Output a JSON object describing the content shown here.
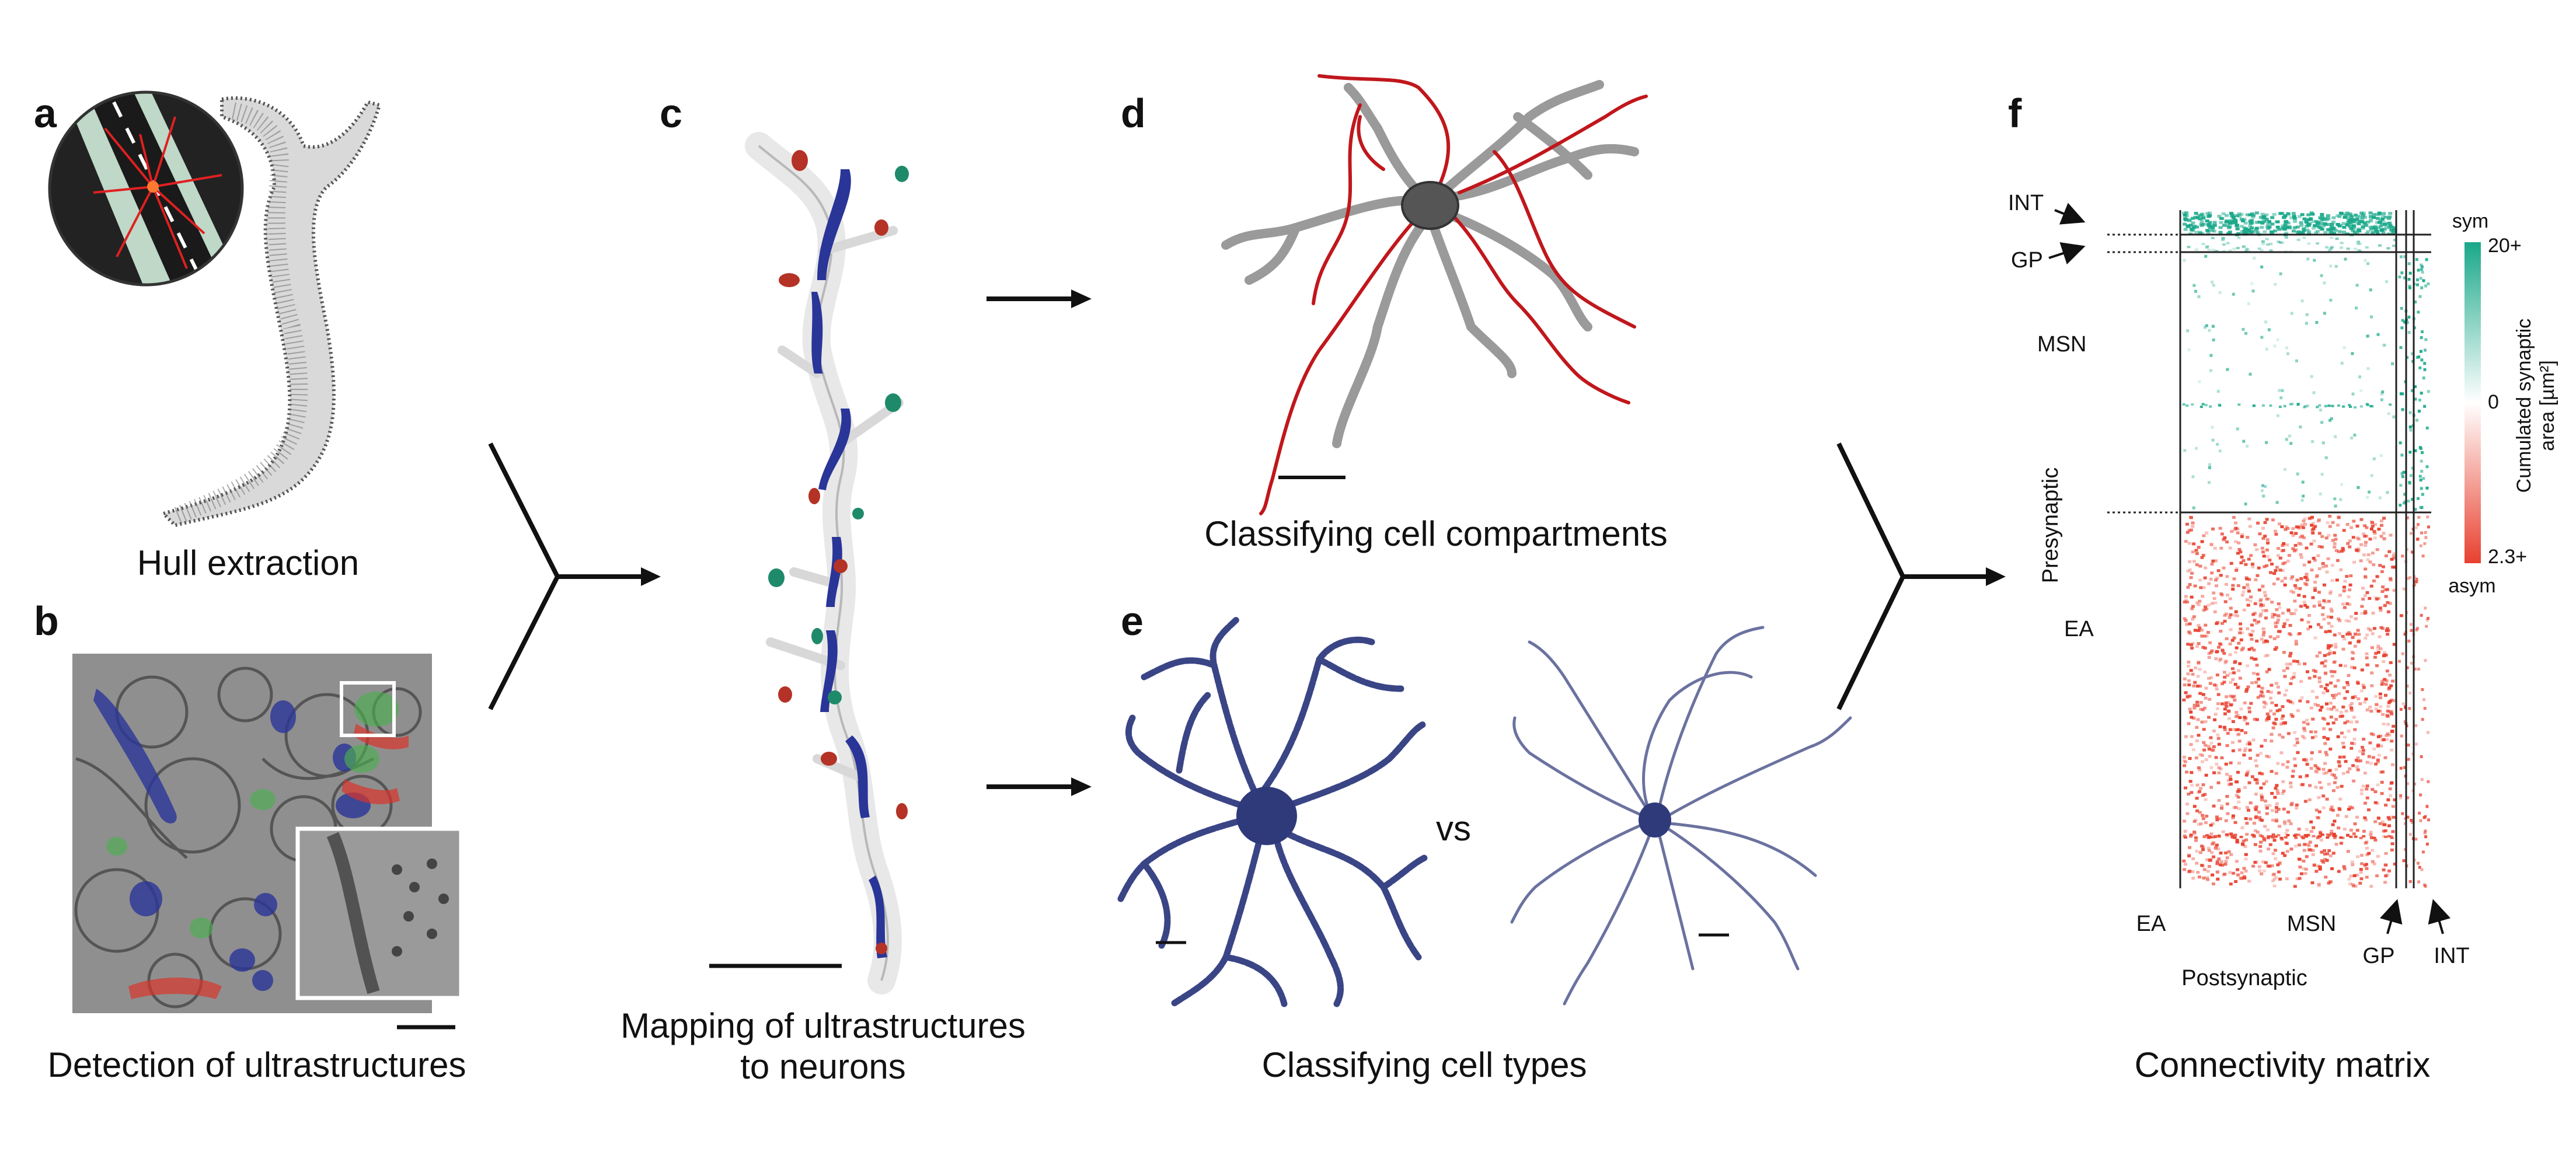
{
  "panels": {
    "a": {
      "label": "a",
      "caption": "Hull extraction"
    },
    "b": {
      "label": "b",
      "caption": "Detection of ultrastructures"
    },
    "c": {
      "label": "c",
      "caption_line1": "Mapping of ultrastructures",
      "caption_line2": "to neurons"
    },
    "d": {
      "label": "d",
      "caption": "Classifying cell compartments"
    },
    "e": {
      "label": "e",
      "caption": "Classifying cell types",
      "vs": "vs"
    },
    "f": {
      "label": "f",
      "caption": "Connectivity matrix"
    }
  },
  "matrix": {
    "presynaptic_rows": [
      "INT",
      "GP",
      "MSN",
      "EA"
    ],
    "presynaptic_axis": "Presynaptic",
    "postsynaptic_cols": [
      "EA",
      "MSN",
      "GP",
      "INT"
    ],
    "postsynaptic_axis": "Postsynaptic",
    "colorbar": {
      "top_label": "sym",
      "max_label": "20+",
      "mid_label": "0",
      "min_label": "2.3+",
      "bottom_label": "asym",
      "title_line1": "Cumulated synaptic",
      "title_line2": "area [µm²]",
      "sym_color": "#1aa88a",
      "asym_color": "#e8412f"
    }
  },
  "colors": {
    "vesicle_blue": "#2a3598",
    "synapse_red": "#c0392b",
    "synapse_green": "#1f8a6a",
    "axon_red": "#c0171c",
    "dendrite_gray": "#9a9a9a",
    "neuron_navy": "#3a4586"
  }
}
